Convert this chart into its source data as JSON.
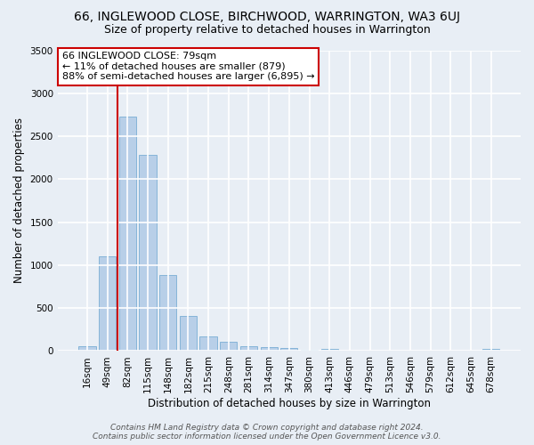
{
  "title": "66, INGLEWOOD CLOSE, BIRCHWOOD, WARRINGTON, WA3 6UJ",
  "subtitle": "Size of property relative to detached houses in Warrington",
  "xlabel": "Distribution of detached houses by size in Warrington",
  "ylabel": "Number of detached properties",
  "categories": [
    "16sqm",
    "49sqm",
    "82sqm",
    "115sqm",
    "148sqm",
    "182sqm",
    "215sqm",
    "248sqm",
    "281sqm",
    "314sqm",
    "347sqm",
    "380sqm",
    "413sqm",
    "446sqm",
    "479sqm",
    "513sqm",
    "546sqm",
    "579sqm",
    "612sqm",
    "645sqm",
    "678sqm"
  ],
  "values": [
    55,
    1100,
    2730,
    2280,
    890,
    410,
    175,
    105,
    60,
    50,
    35,
    20,
    25,
    5,
    5,
    3,
    3,
    2,
    0,
    0,
    30
  ],
  "bar_color": "#b8cfe8",
  "bar_edge_color": "#7aadd4",
  "annotation_text_line1": "66 INGLEWOOD CLOSE: 79sqm",
  "annotation_text_line2": "← 11% of detached houses are smaller (879)",
  "annotation_text_line3": "88% of semi-detached houses are larger (6,895) →",
  "annotation_box_color": "#ffffff",
  "annotation_box_edge_color": "#cc0000",
  "vline_color": "#cc0000",
  "bg_color": "#e8eef5",
  "plot_bg_color": "#e8eef5",
  "grid_color": "#ffffff",
  "ylim": [
    0,
    3500
  ],
  "yticks": [
    0,
    500,
    1000,
    1500,
    2000,
    2500,
    3000,
    3500
  ],
  "footer_line1": "Contains HM Land Registry data © Crown copyright and database right 2024.",
  "footer_line2": "Contains public sector information licensed under the Open Government Licence v3.0.",
  "title_fontsize": 10,
  "subtitle_fontsize": 9,
  "xlabel_fontsize": 8.5,
  "ylabel_fontsize": 8.5,
  "tick_fontsize": 7.5,
  "footer_fontsize": 6.5,
  "annot_fontsize": 8
}
